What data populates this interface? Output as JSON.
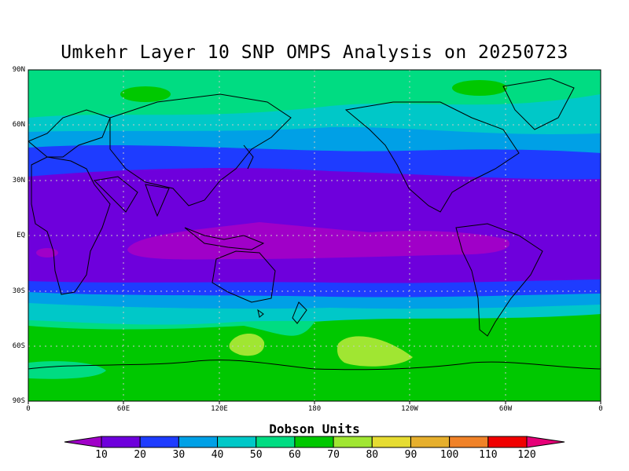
{
  "title": "Umkehr Layer 10 SNP OMPS Analysis on 20250723",
  "lat_labels": [
    "90N",
    "60N",
    "30N",
    "EQ",
    "30S",
    "60S",
    "90S"
  ],
  "lon_labels": [
    "0",
    "60E",
    "120E",
    "180",
    "120W",
    "60W",
    "0"
  ],
  "colorbar": {
    "title": "Dobson Units",
    "ticks": [
      "10",
      "20",
      "30",
      "40",
      "50",
      "60",
      "70",
      "80",
      "90",
      "100",
      "110",
      "120"
    ],
    "colors": [
      "#a000c8",
      "#6e00dc",
      "#1e3cff",
      "#00a0e6",
      "#00c8c8",
      "#00dc82",
      "#00c800",
      "#a0e632",
      "#e6dc32",
      "#e6af2d",
      "#f08228",
      "#f00000",
      "#e60078"
    ]
  }
}
